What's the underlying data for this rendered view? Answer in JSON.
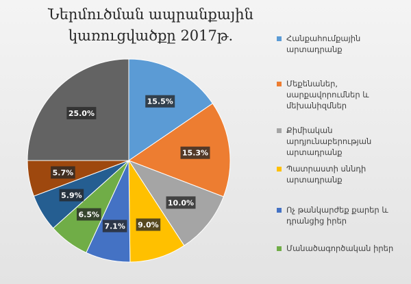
{
  "chart_data": {
    "type": "pie",
    "title": "Ներմուծման ապրանքային կառուցվածքը 2017թ.",
    "slices": [
      {
        "label": "Հանքահումքային արտադրանք",
        "value": 15.5,
        "display": "15.5%",
        "color": "#5b9bd5"
      },
      {
        "label": "Մեքենաներ, սարքավորումներ և մեխանիզմներ",
        "value": 15.3,
        "display": "15.3%",
        "color": "#ed7d31"
      },
      {
        "label": "Քիմիական արդյունաբերության արտադրանք",
        "value": 10.0,
        "display": "10.0%",
        "color": "#a5a5a5"
      },
      {
        "label": "Պատրաստի սննդի արտադրանք",
        "value": 9.0,
        "display": "9.0%",
        "color": "#ffc000"
      },
      {
        "label": "Ոչ թանկարժեք քարեր և դրանցից իրեր",
        "value": 7.1,
        "display": "7.1%",
        "color": "#4472c4"
      },
      {
        "label": "Մանածագործական իրեր",
        "value": 6.5,
        "display": "6.5%",
        "color": "#70ad47"
      },
      {
        "label": "",
        "value": 5.9,
        "display": "5.9%",
        "color": "#255e91"
      },
      {
        "label": "",
        "value": 5.7,
        "display": "5.7%",
        "color": "#9e480e"
      },
      {
        "label": "",
        "value": 25.0,
        "display": "25.0%",
        "color": "#636363"
      }
    ],
    "legend_position": "right"
  }
}
